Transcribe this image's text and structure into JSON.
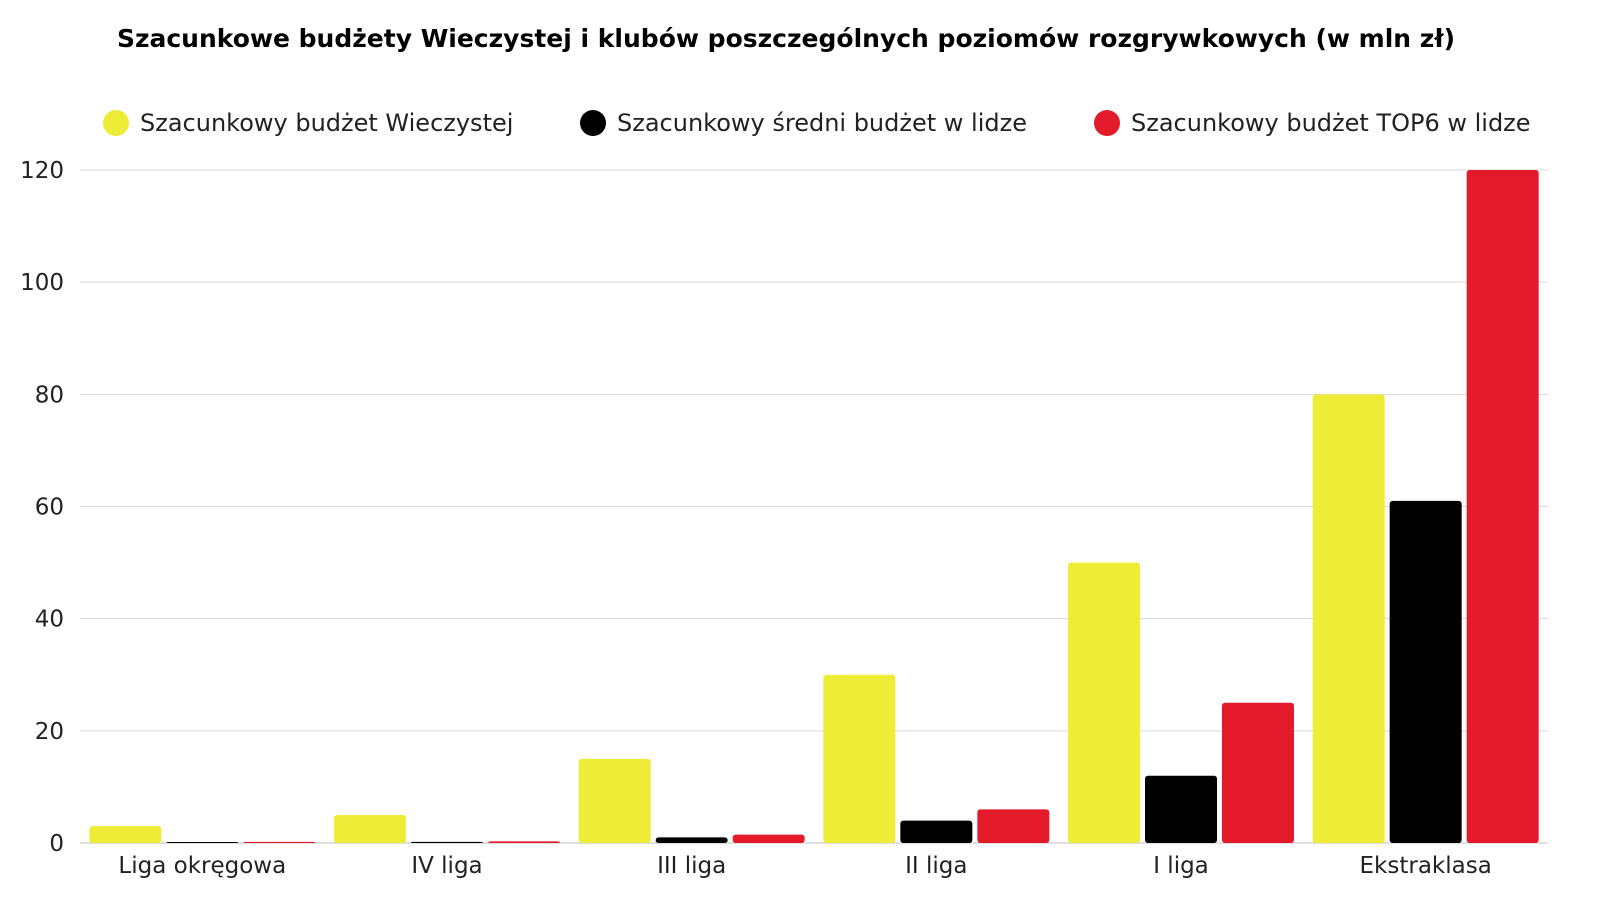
{
  "chart_data": {
    "type": "bar",
    "title": "Szacunkowe budżety Wieczystej i klubów poszczególnych poziomów rozgrywkowych (w mln zł)",
    "xlabel": "",
    "ylabel": "",
    "categories": [
      "Liga okręgowa",
      "IV liga",
      "III liga",
      "II liga",
      "I liga",
      "Ekstraklasa"
    ],
    "series": [
      {
        "name": "Szacunkowy budżet Wieczystej",
        "color": "#eeec36",
        "values": [
          3,
          5,
          15,
          30,
          50,
          80
        ]
      },
      {
        "name": "Szacunkowy średni budżet w lidze",
        "color": "#000000",
        "values": [
          0.1,
          0.2,
          1,
          4,
          12,
          61
        ]
      },
      {
        "name": "Szacunkowy budżet TOP6 w lidze",
        "color": "#e31a2a",
        "values": [
          0.2,
          0.3,
          1.5,
          6,
          25,
          120
        ]
      }
    ],
    "ylim": [
      0,
      120
    ],
    "yticks": [
      0,
      20,
      40,
      60,
      80,
      100,
      120
    ],
    "grid": true,
    "legend_position": "top"
  }
}
